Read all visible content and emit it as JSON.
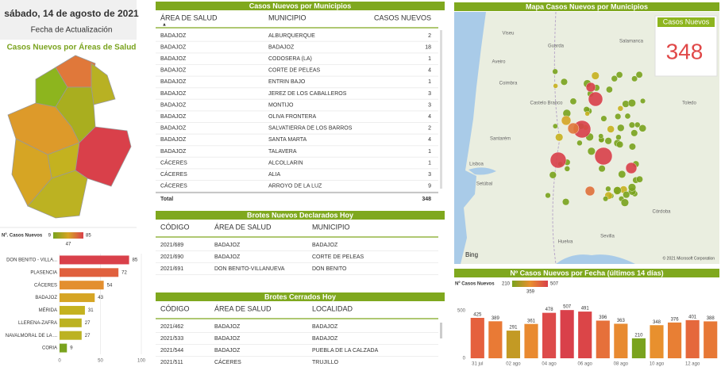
{
  "header": {
    "date": "sábado, 14 de agosto de 2021",
    "caption": "Fecha de Actualización"
  },
  "area_map": {
    "title": "Casos Nuevos por Áreas de Salud"
  },
  "chart_data": [
    {
      "type": "hbar",
      "legend": {
        "title": "Nº. Casos Nuevos",
        "min": 9,
        "mid": 47,
        "max": 85,
        "colors": [
          "#7aa31e",
          "#d6a524",
          "#d9404a"
        ]
      },
      "categories": [
        "DON BENITO - VILLA...",
        "PLASENCIA",
        "CÁCERES",
        "BADAJOZ",
        "MÉRIDA",
        "LLERENA-ZAFRA",
        "NAVALMORAL DE LA ...",
        "CORIA"
      ],
      "values": [
        85,
        72,
        54,
        43,
        31,
        27,
        27,
        9
      ],
      "colors": [
        "#d9404a",
        "#e0603e",
        "#e38f2f",
        "#d6a524",
        "#c4b21f",
        "#bcb222",
        "#bcb222",
        "#7aa31e"
      ],
      "xlim": [
        0,
        100
      ],
      "xticks": [
        0,
        50,
        100
      ],
      "grid": true
    },
    {
      "type": "bar",
      "title": "Nº Casos Nuevos por Fecha (últimos 14 días)",
      "legend": {
        "title": "Nº Casos Nuevos",
        "min": 210,
        "mid": 359,
        "max": 507,
        "colors": [
          "#7aa31e",
          "#e8902e",
          "#d9404a"
        ]
      },
      "categories": [
        "31 jul",
        null,
        "02 ago",
        null,
        "04 ago",
        null,
        "06 ago",
        null,
        "08 ago",
        null,
        "10 ago",
        null,
        "12 ago",
        null
      ],
      "values": [
        425,
        389,
        291,
        361,
        478,
        507,
        491,
        396,
        363,
        210,
        348,
        376,
        401,
        388
      ],
      "colors": [
        "#e5603e",
        "#e97a35",
        "#c39a24",
        "#e98a30",
        "#dd4a4a",
        "#d9404a",
        "#db4548",
        "#e6703a",
        "#e88a30",
        "#7aa31e",
        "#e8902e",
        "#e87f34",
        "#e5683c",
        "#e77836"
      ],
      "ylim": [
        0,
        550
      ],
      "yticks": [
        0,
        500
      ],
      "grid": false
    }
  ],
  "municipal_table": {
    "title": "Casos Nuevos por Municipios",
    "columns": [
      "ÁREA DE SALUD",
      "MUNICIPIO",
      "CASOS NUEVOS"
    ],
    "rows": [
      [
        "BADAJOZ",
        "ALBURQUERQUE",
        2
      ],
      [
        "BADAJOZ",
        "BADAJOZ",
        18
      ],
      [
        "BADAJOZ",
        "CODOSERA (LA)",
        1
      ],
      [
        "BADAJOZ",
        "CORTE DE PELEAS",
        4
      ],
      [
        "BADAJOZ",
        "ENTRIN BAJO",
        1
      ],
      [
        "BADAJOZ",
        "JEREZ DE LOS CABALLEROS",
        3
      ],
      [
        "BADAJOZ",
        "MONTIJO",
        3
      ],
      [
        "BADAJOZ",
        "OLIVA FRONTERA",
        4
      ],
      [
        "BADAJOZ",
        "SALVATIERRA DE LOS BARROS",
        2
      ],
      [
        "BADAJOZ",
        "SANTA MARTA",
        4
      ],
      [
        "BADAJOZ",
        "TALAVERA",
        1
      ],
      [
        "CÁCERES",
        "ALCOLLARIN",
        1
      ],
      [
        "CÁCERES",
        "ALIA",
        3
      ],
      [
        "CÁCERES",
        "ARROYO DE LA LUZ",
        9
      ]
    ],
    "total": {
      "label": "Total",
      "value": 348
    }
  },
  "new_outbreaks": {
    "title": "Brotes Nuevos Declarados Hoy",
    "columns": [
      "CÓDIGO",
      "ÁREA DE SALUD",
      "MUNICIPIO"
    ],
    "rows": [
      [
        "2021/689",
        "BADAJOZ",
        "BADAJOZ"
      ],
      [
        "2021/690",
        "BADAJOZ",
        "CORTE DE PELEAS"
      ],
      [
        "2021/691",
        "DON BENITO-VILLANUEVA",
        "DON BENITO"
      ]
    ]
  },
  "closed_outbreaks": {
    "title": "Brotes Cerrados Hoy",
    "columns": [
      "CÓDIGO",
      "ÁREA DE SALUD",
      "LOCALIDAD"
    ],
    "rows": [
      [
        "2021/462",
        "BADAJOZ",
        "BADAJOZ"
      ],
      [
        "2021/533",
        "BADAJOZ",
        "BADAJOZ"
      ],
      [
        "2021/544",
        "BADAJOZ",
        "PUEBLA DE LA CALZADA"
      ],
      [
        "2021/511",
        "CÁCERES",
        "TRUJILLO"
      ]
    ]
  },
  "municipal_map": {
    "title": "Mapa Casos Nuevos por Municipios",
    "card": {
      "label": "Casos Nuevos",
      "value": 348
    },
    "places": [
      "Viseu",
      "Guarda",
      "Salamanca",
      "Aveiro",
      "Coimbra",
      "Castelo Branco",
      "Santarém",
      "Lisboa",
      "Setúbal",
      "Toledo",
      "Córdoba",
      "Sevilla",
      "Huelva"
    ],
    "provider": "Bing",
    "attribution": "© 2021 Microsoft Corporation"
  }
}
